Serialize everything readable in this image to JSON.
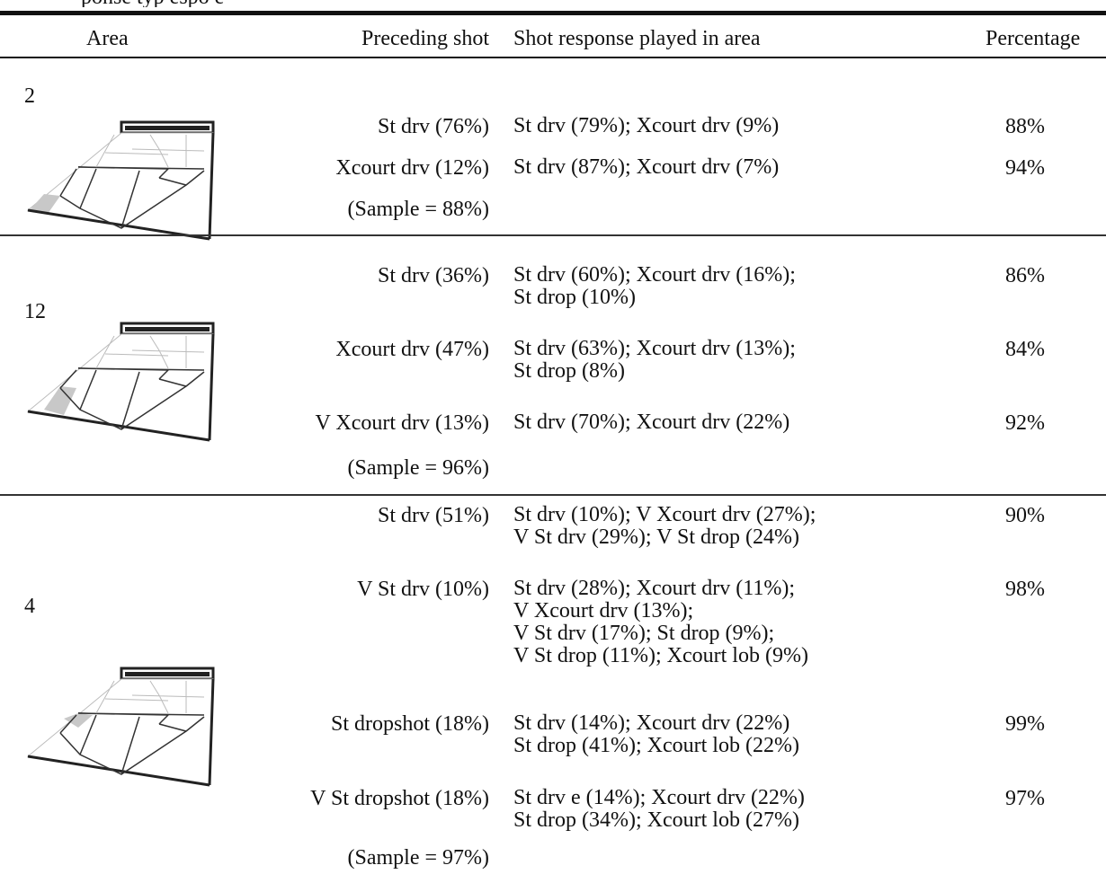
{
  "caption_fragment": "ponse typ   espo  e",
  "headers": {
    "area": "Area",
    "preceding": "Preceding shot",
    "response": "Shot response played in area",
    "percentage": "Percentage"
  },
  "groups": [
    {
      "area": "2",
      "rows": [
        {
          "preceding": "St drv (76%)",
          "response": "St drv (79%); Xcourt drv (9%)",
          "percentage": "88%"
        },
        {
          "preceding": "Xcourt drv (12%)",
          "response": "St drv (87%); Xcourt drv (7%)",
          "percentage": "94%"
        }
      ],
      "sample": "(Sample = 88%)"
    },
    {
      "area": "12",
      "rows": [
        {
          "preceding": "St drv (36%)",
          "response": "St drv (60%); Xcourt drv (16%);\nSt drop (10%)",
          "percentage": "86%"
        },
        {
          "preceding": "Xcourt drv (47%)",
          "response": "St drv (63%); Xcourt drv (13%);\nSt drop (8%)",
          "percentage": "84%"
        },
        {
          "preceding": "V Xcourt drv (13%)",
          "response": "St drv (70%); Xcourt drv (22%)",
          "percentage": "92%"
        }
      ],
      "sample": "(Sample = 96%)"
    },
    {
      "area": "4",
      "rows": [
        {
          "preceding": "St drv (51%)",
          "response": "St drv (10%); V Xcourt drv (27%);\nV St drv (29%); V St drop (24%)",
          "percentage": "90%"
        },
        {
          "preceding": "V St drv (10%)",
          "response": "St drv (28%); Xcourt drv (11%);\nV Xcourt drv (13%);\nV St drv (17%); St drop (9%);\nV St drop (11%); Xcourt lob (9%)",
          "percentage": "98%"
        },
        {
          "preceding": "St dropshot (18%)",
          "response": "St drv (14%); Xcourt drv (22%)\nSt drop (41%); Xcourt lob (22%)",
          "percentage": "99%"
        },
        {
          "preceding": "V St dropshot (18%)",
          "response": "St drv e (14%); Xcourt drv (22%)\nSt drop (34%); Xcourt lob (27%)",
          "percentage": "97%"
        }
      ],
      "sample": "(Sample = 97%)"
    }
  ],
  "court_icon": {
    "name": "squash-court-diagram-icon",
    "highlight_color": "#c8c8c8",
    "line_color": "#222222"
  }
}
